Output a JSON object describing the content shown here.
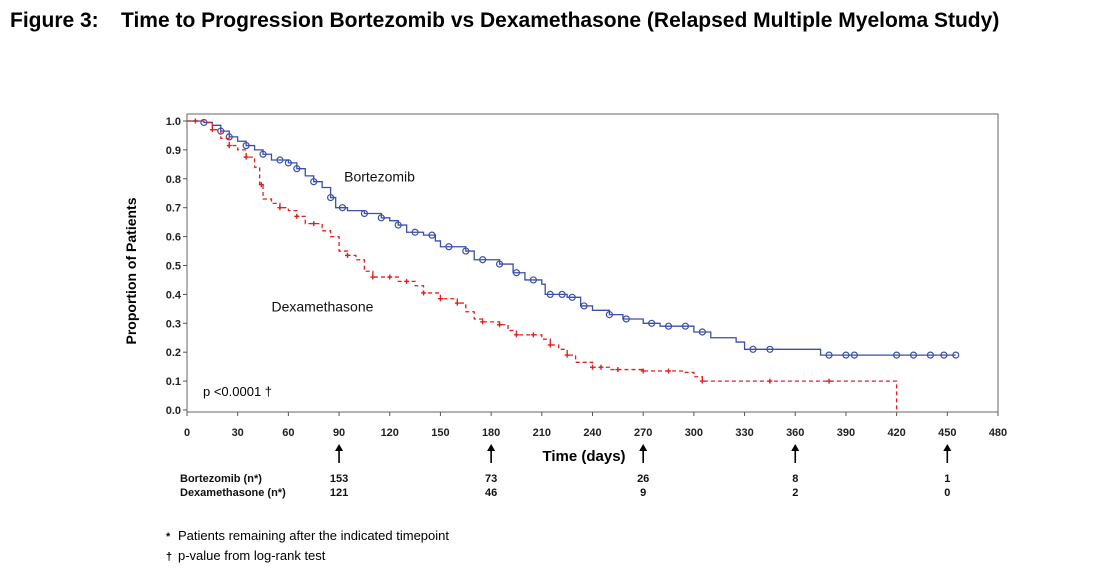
{
  "figure": {
    "number": "Figure 3:",
    "title": "Time to Progression Bortezomib vs Dexamethasone (Relapsed Multiple Myeloma Study)"
  },
  "chart_data": {
    "type": "line",
    "step": true,
    "xlabel": "Time (days)",
    "ylabel": "Proportion of Patients",
    "xlim": [
      0,
      480
    ],
    "ylim": [
      0,
      1.0
    ],
    "xticks": [
      0,
      30,
      60,
      90,
      120,
      150,
      180,
      210,
      240,
      270,
      300,
      330,
      360,
      390,
      420,
      450,
      480
    ],
    "yticks": [
      "0.0",
      "0.1",
      "0.2",
      "0.3",
      "0.4",
      "0.5",
      "0.6",
      "0.7",
      "0.8",
      "0.9",
      "1.0"
    ],
    "grid": false,
    "annotation": "p <0.0001 †",
    "series": [
      {
        "name": "Bortezomib",
        "color": "#3a4fa8",
        "line_style": "solid",
        "marker": "open-circle",
        "label_at": [
          93,
          0.79
        ],
        "points": [
          [
            0,
            1.0
          ],
          [
            5,
            1.0
          ],
          [
            10,
            0.995
          ],
          [
            15,
            0.985
          ],
          [
            20,
            0.965
          ],
          [
            25,
            0.945
          ],
          [
            30,
            0.93
          ],
          [
            35,
            0.915
          ],
          [
            40,
            0.9
          ],
          [
            45,
            0.885
          ],
          [
            50,
            0.865
          ],
          [
            60,
            0.855
          ],
          [
            65,
            0.835
          ],
          [
            70,
            0.81
          ],
          [
            75,
            0.79
          ],
          [
            80,
            0.77
          ],
          [
            85,
            0.735
          ],
          [
            88,
            0.7
          ],
          [
            95,
            0.69
          ],
          [
            105,
            0.68
          ],
          [
            115,
            0.665
          ],
          [
            120,
            0.655
          ],
          [
            125,
            0.64
          ],
          [
            130,
            0.615
          ],
          [
            140,
            0.605
          ],
          [
            147,
            0.585
          ],
          [
            150,
            0.565
          ],
          [
            165,
            0.55
          ],
          [
            170,
            0.52
          ],
          [
            185,
            0.505
          ],
          [
            193,
            0.475
          ],
          [
            200,
            0.45
          ],
          [
            210,
            0.435
          ],
          [
            212,
            0.4
          ],
          [
            225,
            0.39
          ],
          [
            233,
            0.36
          ],
          [
            240,
            0.345
          ],
          [
            250,
            0.33
          ],
          [
            258,
            0.315
          ],
          [
            270,
            0.3
          ],
          [
            280,
            0.29
          ],
          [
            300,
            0.27
          ],
          [
            310,
            0.25
          ],
          [
            325,
            0.235
          ],
          [
            330,
            0.21
          ],
          [
            365,
            0.21
          ],
          [
            375,
            0.19
          ],
          [
            455,
            0.19
          ]
        ],
        "marker_x": [
          10,
          20,
          25,
          35,
          45,
          55,
          60,
          65,
          75,
          85,
          92,
          105,
          115,
          125,
          135,
          145,
          155,
          165,
          175,
          185,
          195,
          205,
          215,
          222,
          228,
          235,
          250,
          260,
          275,
          285,
          295,
          305,
          335,
          345,
          380,
          390,
          395,
          420,
          430,
          440,
          448,
          455
        ]
      },
      {
        "name": "Dexamethasone",
        "color": "#e02020",
        "line_style": "dashed",
        "marker": "cross",
        "label_at": [
          50,
          0.34
        ],
        "points": [
          [
            0,
            1.0
          ],
          [
            5,
            1.0
          ],
          [
            10,
            0.995
          ],
          [
            15,
            0.97
          ],
          [
            20,
            0.94
          ],
          [
            25,
            0.915
          ],
          [
            30,
            0.9
          ],
          [
            35,
            0.875
          ],
          [
            40,
            0.84
          ],
          [
            43,
            0.78
          ],
          [
            45,
            0.73
          ],
          [
            50,
            0.715
          ],
          [
            55,
            0.7
          ],
          [
            60,
            0.69
          ],
          [
            65,
            0.67
          ],
          [
            70,
            0.645
          ],
          [
            80,
            0.62
          ],
          [
            85,
            0.6
          ],
          [
            90,
            0.55
          ],
          [
            95,
            0.535
          ],
          [
            100,
            0.52
          ],
          [
            105,
            0.48
          ],
          [
            110,
            0.46
          ],
          [
            125,
            0.445
          ],
          [
            135,
            0.43
          ],
          [
            140,
            0.405
          ],
          [
            150,
            0.385
          ],
          [
            160,
            0.37
          ],
          [
            165,
            0.34
          ],
          [
            170,
            0.315
          ],
          [
            175,
            0.305
          ],
          [
            185,
            0.295
          ],
          [
            190,
            0.275
          ],
          [
            195,
            0.26
          ],
          [
            210,
            0.245
          ],
          [
            215,
            0.225
          ],
          [
            220,
            0.21
          ],
          [
            225,
            0.19
          ],
          [
            230,
            0.165
          ],
          [
            240,
            0.148
          ],
          [
            250,
            0.14
          ],
          [
            270,
            0.135
          ],
          [
            295,
            0.13
          ],
          [
            300,
            0.115
          ],
          [
            305,
            0.1
          ],
          [
            420,
            0.1
          ],
          [
            420,
            0.0
          ]
        ],
        "marker_x": [
          5,
          15,
          25,
          35,
          44,
          55,
          65,
          75,
          95,
          110,
          120,
          130,
          140,
          150,
          160,
          175,
          185,
          195,
          205,
          215,
          225,
          240,
          245,
          255,
          270,
          285,
          305,
          345,
          380
        ]
      }
    ],
    "arrows_at": [
      90,
      180,
      270,
      360,
      450
    ],
    "risk_table": {
      "rows": [
        {
          "label": "Bortezomib (n*)",
          "values": [
            "153",
            "73",
            "26",
            "8",
            "1"
          ]
        },
        {
          "label": "Dexamethasone (n*)",
          "values": [
            "121",
            "46",
            "9",
            "2",
            "0"
          ]
        }
      ]
    }
  },
  "footnotes": [
    {
      "mark": "*",
      "text": "Patients remaining after the indicated timepoint"
    },
    {
      "mark": "†",
      "text": "p-value from log-rank test"
    }
  ]
}
